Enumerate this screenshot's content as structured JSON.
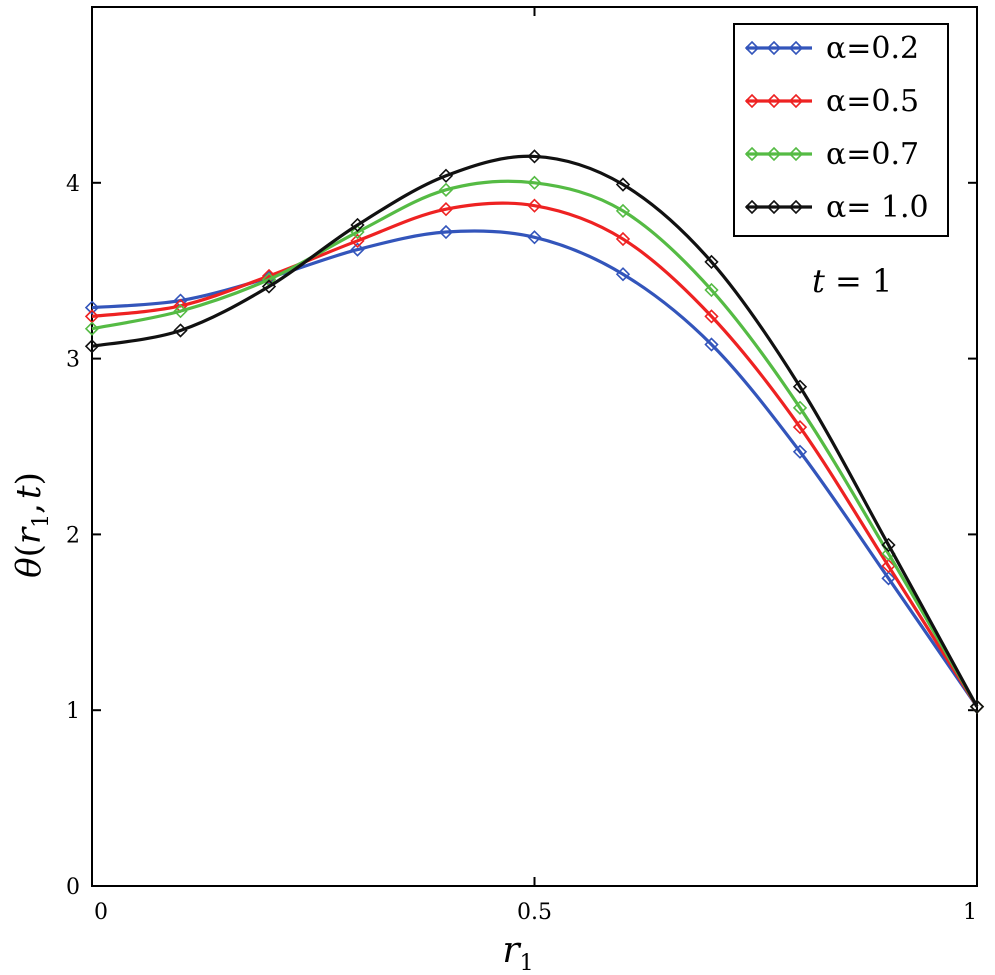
{
  "chart_data": {
    "type": "line",
    "title": "",
    "xlabel": "r1",
    "ylabel": "θ(r1, t)",
    "xlabel_main": "r",
    "xlabel_sub": "1",
    "ylabel_parts": {
      "theta": "θ",
      "open": "(",
      "r": "r",
      "sub": "1",
      "comma": ",",
      "t": "t",
      "close": ")"
    },
    "xlim": [
      0,
      1
    ],
    "ylim": [
      0,
      5
    ],
    "xticks": [
      0,
      0.5,
      1
    ],
    "xtick_labels": [
      "0",
      "0.5",
      "1"
    ],
    "yticks": [
      0,
      1,
      2,
      3,
      4
    ],
    "ytick_labels": [
      "0",
      "1",
      "2",
      "3",
      "4"
    ],
    "grid": false,
    "legend_position": "top-right",
    "annotation": {
      "var": "t",
      "eq": " = 1"
    },
    "x": [
      0,
      0.1,
      0.2,
      0.3,
      0.4,
      0.5,
      0.6,
      0.7,
      0.8,
      0.9,
      1.0
    ],
    "series": [
      {
        "name": "α=0.2",
        "color": "#3355bb",
        "values": [
          3.29,
          3.33,
          3.46,
          3.62,
          3.72,
          3.69,
          3.48,
          3.08,
          2.47,
          1.75,
          1.02
        ]
      },
      {
        "name": "α=0.5",
        "color": "#ee2222",
        "values": [
          3.24,
          3.3,
          3.47,
          3.67,
          3.85,
          3.87,
          3.68,
          3.24,
          2.61,
          1.82,
          1.02
        ]
      },
      {
        "name": "α=0.7",
        "color": "#55bb44",
        "values": [
          3.17,
          3.27,
          3.45,
          3.72,
          3.96,
          4.0,
          3.84,
          3.39,
          2.72,
          1.89,
          1.02
        ]
      },
      {
        "name": "α= 1.0",
        "color": "#111111",
        "values": [
          3.07,
          3.16,
          3.41,
          3.76,
          4.04,
          4.15,
          3.99,
          3.55,
          2.84,
          1.94,
          1.02
        ]
      }
    ]
  }
}
